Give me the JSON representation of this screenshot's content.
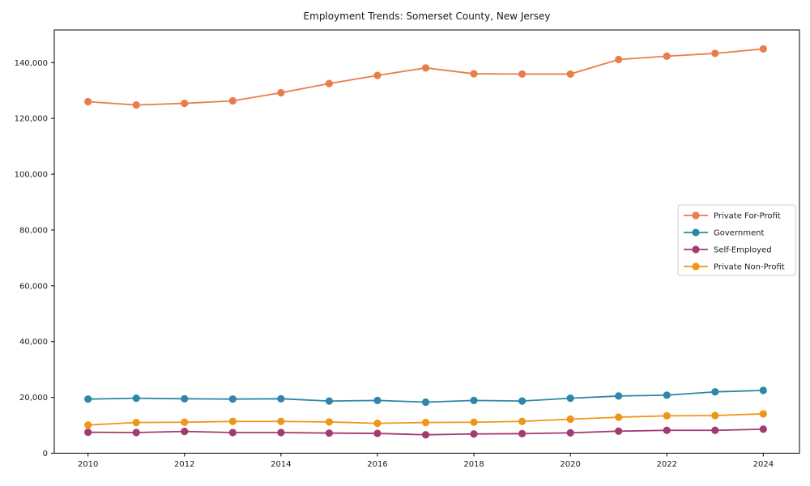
{
  "chart_data": {
    "type": "line",
    "title": "Employment Trends: Somerset County, New Jersey",
    "xlabel": "",
    "ylabel": "",
    "x": [
      2010,
      2011,
      2012,
      2013,
      2014,
      2015,
      2016,
      2017,
      2018,
      2019,
      2020,
      2021,
      2022,
      2023,
      2024
    ],
    "series": [
      {
        "name": "Private For-Profit",
        "color": "#E87D4A",
        "values": [
          126000,
          124800,
          125400,
          126300,
          129200,
          132500,
          135400,
          138100,
          136000,
          135900,
          135900,
          141100,
          142300,
          143300,
          144900
        ]
      },
      {
        "name": "Government",
        "color": "#2E86A8",
        "values": [
          19400,
          19700,
          19500,
          19400,
          19500,
          18700,
          18900,
          18300,
          18900,
          18700,
          19700,
          20500,
          20800,
          22000,
          22500
        ]
      },
      {
        "name": "Self-Employed",
        "color": "#A23B72",
        "values": [
          7500,
          7400,
          7800,
          7400,
          7400,
          7200,
          7100,
          6600,
          6900,
          7000,
          7300,
          7900,
          8200,
          8200,
          8600
        ]
      },
      {
        "name": "Private Non-Profit",
        "color": "#EF9619",
        "values": [
          10100,
          11000,
          11100,
          11400,
          11400,
          11200,
          10700,
          11000,
          11100,
          11400,
          12200,
          12900,
          13400,
          13500,
          14100
        ]
      }
    ],
    "xticks": {
      "values": [
        2010,
        2012,
        2014,
        2016,
        2018,
        2020,
        2022,
        2024
      ],
      "labels": [
        "2010",
        "2012",
        "2014",
        "2016",
        "2018",
        "2020",
        "2022",
        "2024"
      ]
    },
    "yticks": {
      "values": [
        0,
        20000,
        40000,
        60000,
        80000,
        100000,
        120000,
        140000
      ],
      "labels": [
        "0",
        "20,000",
        "40,000",
        "60,000",
        "80,000",
        "100,000",
        "120,000",
        "140,000"
      ]
    },
    "xlim": [
      2009.3,
      2024.75
    ],
    "ylim": [
      0,
      151700
    ],
    "grid": false,
    "legend_position": "center-right",
    "colors": {
      "spine": "#000000",
      "tick_label": "#1a1a1a",
      "legend_border": "#cccccc",
      "legend_background": "#ffffff",
      "figure_background": "#ffffff"
    }
  }
}
